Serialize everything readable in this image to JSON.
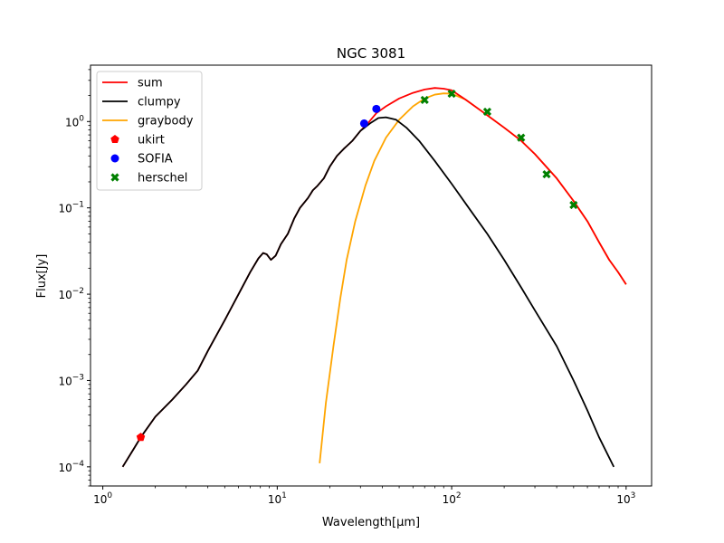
{
  "chart_data": {
    "type": "line",
    "title": "NGC 3081",
    "xlabel": "Wavelength[μm]",
    "ylabel": "Flux[Jy]",
    "xscale": "log",
    "yscale": "log",
    "xlim": [
      0.85,
      1400
    ],
    "ylim": [
      6e-05,
      4.5
    ],
    "xticks": [
      {
        "value": 1,
        "base": "10",
        "exp": "0"
      },
      {
        "value": 10,
        "base": "10",
        "exp": "1"
      },
      {
        "value": 100,
        "base": "10",
        "exp": "2"
      },
      {
        "value": 1000,
        "base": "10",
        "exp": "3"
      }
    ],
    "yticks": [
      {
        "value": 0.0001,
        "base": "10",
        "exp": "−4"
      },
      {
        "value": 0.001,
        "base": "10",
        "exp": "−3"
      },
      {
        "value": 0.01,
        "base": "10",
        "exp": "−2"
      },
      {
        "value": 0.1,
        "base": "10",
        "exp": "−1"
      },
      {
        "value": 1,
        "base": "10",
        "exp": "0"
      }
    ],
    "grid": false,
    "legend_position": "top-left",
    "series": [
      {
        "name": "sum",
        "kind": "line",
        "color": "#ff0000",
        "points": [
          [
            1.3,
            0.0001
          ],
          [
            1.5,
            0.00016
          ],
          [
            1.65,
            0.00022
          ],
          [
            2.0,
            0.00038
          ],
          [
            2.5,
            0.0006
          ],
          [
            3,
            0.0009
          ],
          [
            3.5,
            0.0013
          ],
          [
            4,
            0.0022
          ],
          [
            5,
            0.005
          ],
          [
            6,
            0.01
          ],
          [
            7,
            0.018
          ],
          [
            7.8,
            0.026
          ],
          [
            8.3,
            0.03
          ],
          [
            8.7,
            0.029
          ],
          [
            9.2,
            0.025
          ],
          [
            9.8,
            0.028
          ],
          [
            10.5,
            0.038
          ],
          [
            11.5,
            0.05
          ],
          [
            12.5,
            0.075
          ],
          [
            13.5,
            0.1
          ],
          [
            15,
            0.13
          ],
          [
            16,
            0.16
          ],
          [
            17,
            0.18
          ],
          [
            18.5,
            0.22
          ],
          [
            20,
            0.3
          ],
          [
            22,
            0.4
          ],
          [
            24,
            0.48
          ],
          [
            27,
            0.6
          ],
          [
            30,
            0.78
          ],
          [
            33,
            0.95
          ],
          [
            37,
            1.25
          ],
          [
            42,
            1.5
          ],
          [
            50,
            1.85
          ],
          [
            60,
            2.15
          ],
          [
            70,
            2.35
          ],
          [
            80,
            2.45
          ],
          [
            90,
            2.4
          ],
          [
            100,
            2.3
          ],
          [
            120,
            1.8
          ],
          [
            150,
            1.3
          ],
          [
            200,
            0.85
          ],
          [
            250,
            0.6
          ],
          [
            300,
            0.42
          ],
          [
            400,
            0.22
          ],
          [
            500,
            0.12
          ],
          [
            600,
            0.07
          ],
          [
            700,
            0.04
          ],
          [
            800,
            0.025
          ],
          [
            900,
            0.018
          ],
          [
            1000,
            0.013
          ]
        ]
      },
      {
        "name": "clumpy",
        "kind": "line",
        "color": "#000000",
        "points": [
          [
            1.3,
            0.0001
          ],
          [
            1.5,
            0.00016
          ],
          [
            1.65,
            0.00022
          ],
          [
            2.0,
            0.00038
          ],
          [
            2.5,
            0.0006
          ],
          [
            3,
            0.0009
          ],
          [
            3.5,
            0.0013
          ],
          [
            4,
            0.0022
          ],
          [
            5,
            0.005
          ],
          [
            6,
            0.01
          ],
          [
            7,
            0.018
          ],
          [
            7.8,
            0.026
          ],
          [
            8.3,
            0.03
          ],
          [
            8.7,
            0.029
          ],
          [
            9.2,
            0.025
          ],
          [
            9.8,
            0.028
          ],
          [
            10.5,
            0.038
          ],
          [
            11.5,
            0.05
          ],
          [
            12.5,
            0.075
          ],
          [
            13.5,
            0.1
          ],
          [
            15,
            0.13
          ],
          [
            16,
            0.16
          ],
          [
            17,
            0.18
          ],
          [
            18.5,
            0.22
          ],
          [
            20,
            0.3
          ],
          [
            22,
            0.4
          ],
          [
            24,
            0.48
          ],
          [
            27,
            0.6
          ],
          [
            30,
            0.78
          ],
          [
            34,
            0.95
          ],
          [
            38,
            1.1
          ],
          [
            42,
            1.12
          ],
          [
            48,
            1.05
          ],
          [
            55,
            0.85
          ],
          [
            65,
            0.6
          ],
          [
            80,
            0.35
          ],
          [
            100,
            0.19
          ],
          [
            130,
            0.09
          ],
          [
            160,
            0.05
          ],
          [
            200,
            0.025
          ],
          [
            250,
            0.012
          ],
          [
            300,
            0.0065
          ],
          [
            400,
            0.0025
          ],
          [
            500,
            0.001
          ],
          [
            600,
            0.00045
          ],
          [
            700,
            0.00022
          ],
          [
            850,
            0.0001
          ]
        ]
      },
      {
        "name": "graybody",
        "kind": "line",
        "color": "#ffa500",
        "points": [
          [
            17.5,
            0.00011
          ],
          [
            19,
            0.00055
          ],
          [
            21,
            0.0025
          ],
          [
            23,
            0.009
          ],
          [
            25,
            0.025
          ],
          [
            28,
            0.07
          ],
          [
            32,
            0.18
          ],
          [
            36,
            0.35
          ],
          [
            42,
            0.65
          ],
          [
            50,
            1.05
          ],
          [
            60,
            1.5
          ],
          [
            70,
            1.85
          ],
          [
            80,
            2.05
          ],
          [
            90,
            2.12
          ],
          [
            100,
            2.1
          ],
          [
            120,
            1.8
          ],
          [
            150,
            1.3
          ],
          [
            200,
            0.85
          ],
          [
            250,
            0.6
          ],
          [
            300,
            0.42
          ],
          [
            400,
            0.22
          ],
          [
            500,
            0.12
          ],
          [
            600,
            0.07
          ],
          [
            700,
            0.04
          ],
          [
            800,
            0.025
          ],
          [
            900,
            0.018
          ],
          [
            1000,
            0.013
          ]
        ]
      },
      {
        "name": "ukirt",
        "kind": "marker",
        "marker": "pentagon",
        "color": "#ff0000",
        "points": [
          [
            1.65,
            0.00022
          ]
        ]
      },
      {
        "name": "SOFIA",
        "kind": "marker",
        "marker": "circle",
        "color": "#0000ff",
        "points": [
          [
            31.5,
            0.95
          ],
          [
            37,
            1.4
          ]
        ]
      },
      {
        "name": "herschel",
        "kind": "marker",
        "marker": "x",
        "color": "#008000",
        "points": [
          [
            70,
            1.78
          ],
          [
            100,
            2.1
          ],
          [
            160,
            1.3
          ],
          [
            250,
            0.65
          ],
          [
            350,
            0.245
          ],
          [
            500,
            0.108
          ]
        ]
      }
    ]
  }
}
